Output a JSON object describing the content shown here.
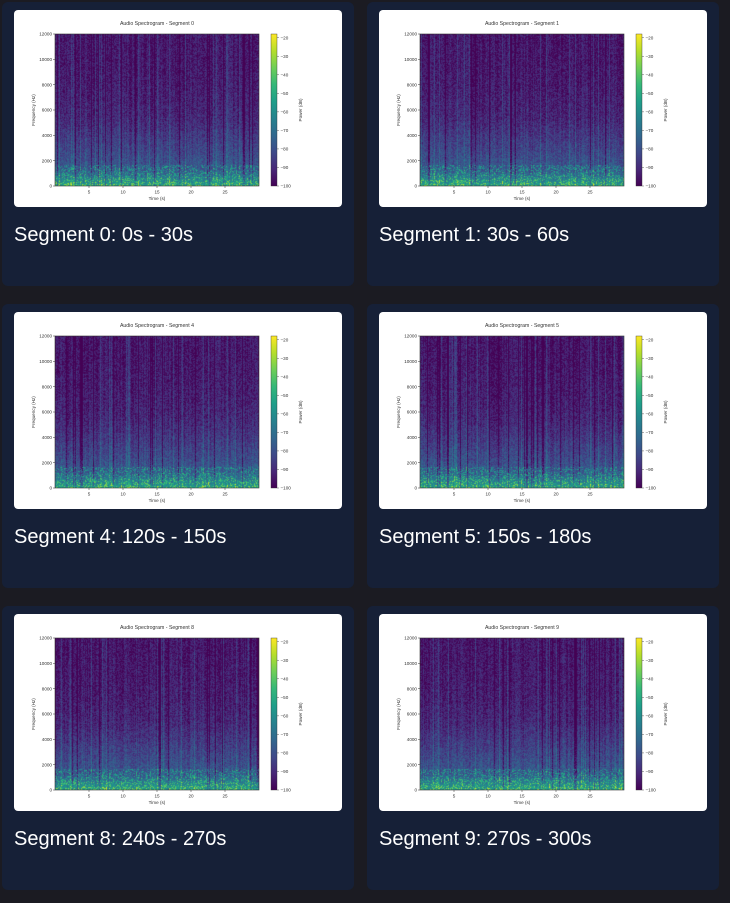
{
  "segments": [
    {
      "caption": "Segment 0: 0s - 30s",
      "chart_data": {
        "type": "heatmap",
        "title": "Audio Spectrogram - Segment 0",
        "xlabel": "Time (s)",
        "ylabel": "Frequency (Hz)",
        "xticks": [
          "5",
          "10",
          "15",
          "20",
          "25"
        ],
        "yticks": [
          "0",
          "2000",
          "4000",
          "6000",
          "8000",
          "10000",
          "12000"
        ],
        "xlim": [
          0,
          30
        ],
        "ylim": [
          0,
          12000
        ],
        "colorbar_label": "Power (dB)",
        "colorbar_ticks": [
          "-20",
          "-30",
          "-40",
          "-50",
          "-60",
          "-70",
          "-80",
          "-90",
          "-100"
        ],
        "colormap": "viridis"
      }
    },
    {
      "caption": "Segment 1: 30s - 60s",
      "chart_data": {
        "type": "heatmap",
        "title": "Audio Spectrogram - Segment 1",
        "xlabel": "Time (s)",
        "ylabel": "Frequency (Hz)",
        "xticks": [
          "5",
          "10",
          "15",
          "20",
          "25"
        ],
        "yticks": [
          "0",
          "2000",
          "4000",
          "6000",
          "8000",
          "10000",
          "12000"
        ],
        "xlim": [
          0,
          30
        ],
        "ylim": [
          0,
          12000
        ],
        "colorbar_label": "Power (dB)",
        "colorbar_ticks": [
          "-20",
          "-30",
          "-40",
          "-50",
          "-60",
          "-70",
          "-80",
          "-90",
          "-100"
        ],
        "colormap": "viridis"
      }
    },
    {
      "caption": "Segment 4: 120s - 150s",
      "chart_data": {
        "type": "heatmap",
        "title": "Audio Spectrogram - Segment 4",
        "xlabel": "Time (s)",
        "ylabel": "Frequency (Hz)",
        "xticks": [
          "5",
          "10",
          "15",
          "20",
          "25"
        ],
        "yticks": [
          "0",
          "2000",
          "4000",
          "6000",
          "8000",
          "10000",
          "12000"
        ],
        "xlim": [
          0,
          30
        ],
        "ylim": [
          0,
          12000
        ],
        "colorbar_label": "Power (dB)",
        "colorbar_ticks": [
          "-20",
          "-30",
          "-40",
          "-50",
          "-60",
          "-70",
          "-80",
          "-90",
          "-100"
        ],
        "colormap": "viridis"
      }
    },
    {
      "caption": "Segment 5: 150s - 180s",
      "chart_data": {
        "type": "heatmap",
        "title": "Audio Spectrogram - Segment 5",
        "xlabel": "Time (s)",
        "ylabel": "Frequency (Hz)",
        "xticks": [
          "5",
          "10",
          "15",
          "20",
          "25"
        ],
        "yticks": [
          "0",
          "2000",
          "4000",
          "6000",
          "8000",
          "10000",
          "12000"
        ],
        "xlim": [
          0,
          30
        ],
        "ylim": [
          0,
          12000
        ],
        "colorbar_label": "Power (dB)",
        "colorbar_ticks": [
          "-20",
          "-30",
          "-40",
          "-50",
          "-60",
          "-70",
          "-80",
          "-90",
          "-100"
        ],
        "colormap": "viridis"
      }
    },
    {
      "caption": "Segment 8: 240s - 270s",
      "chart_data": {
        "type": "heatmap",
        "title": "Audio Spectrogram - Segment 8",
        "xlabel": "Time (s)",
        "ylabel": "Frequency (Hz)",
        "xticks": [
          "5",
          "10",
          "15",
          "20",
          "25"
        ],
        "yticks": [
          "0",
          "2000",
          "4000",
          "6000",
          "8000",
          "10000",
          "12000"
        ],
        "xlim": [
          0,
          30
        ],
        "ylim": [
          0,
          12000
        ],
        "colorbar_label": "Power (dB)",
        "colorbar_ticks": [
          "-20",
          "-30",
          "-40",
          "-50",
          "-60",
          "-70",
          "-80",
          "-90",
          "-100"
        ],
        "colormap": "viridis"
      }
    },
    {
      "caption": "Segment 9: 270s - 300s",
      "chart_data": {
        "type": "heatmap",
        "title": "Audio Spectrogram - Segment 9",
        "xlabel": "Time (s)",
        "ylabel": "Frequency (Hz)",
        "xticks": [
          "5",
          "10",
          "15",
          "20",
          "25"
        ],
        "yticks": [
          "0",
          "2000",
          "4000",
          "6000",
          "8000",
          "10000",
          "12000"
        ],
        "xlim": [
          0,
          30
        ],
        "ylim": [
          0,
          12000
        ],
        "colorbar_label": "Power (dB)",
        "colorbar_ticks": [
          "-20",
          "-30",
          "-40",
          "-50",
          "-60",
          "-70",
          "-80",
          "-90",
          "-100"
        ],
        "colormap": "viridis"
      }
    }
  ],
  "colors": {
    "page_background": "#1b1b22",
    "card_background": "#162037",
    "caption_text": "#ffffff",
    "plot_background": "#ffffff"
  }
}
